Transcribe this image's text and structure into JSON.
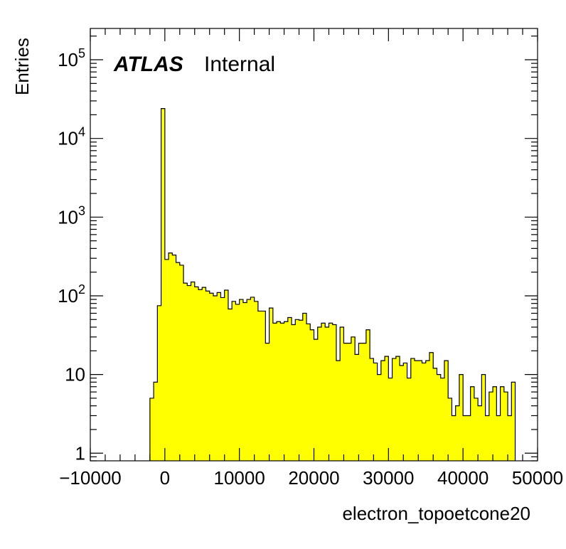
{
  "chart_data": {
    "type": "bar",
    "subtype": "histogram",
    "xlabel": "electron_topoetcone20",
    "ylabel": "Entries",
    "annotation": {
      "label": "ATLAS",
      "status": "Internal"
    },
    "xlim": [
      -10000,
      50000
    ],
    "ylim": [
      0.8,
      250000
    ],
    "yscale": "log",
    "fill_color": "#ffff00",
    "line_color": "#000000",
    "bin_width": 500,
    "x_ticks": [
      "−10000",
      "0",
      "10000",
      "20000",
      "30000",
      "40000",
      "50000"
    ],
    "y_ticks": [
      {
        "value": 1,
        "base": "1",
        "exp": ""
      },
      {
        "value": 10,
        "base": "10",
        "exp": ""
      },
      {
        "value": 100,
        "base": "10",
        "exp": "2"
      },
      {
        "value": 1000,
        "base": "10",
        "exp": "3"
      },
      {
        "value": 10000,
        "base": "10",
        "exp": "4"
      },
      {
        "value": 100000,
        "base": "10",
        "exp": "5"
      }
    ],
    "bins": [
      {
        "x": -2000,
        "y": 5
      },
      {
        "x": -1500,
        "y": 8
      },
      {
        "x": -1000,
        "y": 75
      },
      {
        "x": -500,
        "y": 24000
      },
      {
        "x": 0,
        "y": 290
      },
      {
        "x": 500,
        "y": 350
      },
      {
        "x": 1000,
        "y": 330
      },
      {
        "x": 1500,
        "y": 265
      },
      {
        "x": 2000,
        "y": 245
      },
      {
        "x": 2500,
        "y": 145
      },
      {
        "x": 3000,
        "y": 135
      },
      {
        "x": 3500,
        "y": 150
      },
      {
        "x": 4000,
        "y": 130
      },
      {
        "x": 4500,
        "y": 120
      },
      {
        "x": 5000,
        "y": 128
      },
      {
        "x": 5500,
        "y": 115
      },
      {
        "x": 6000,
        "y": 108
      },
      {
        "x": 6500,
        "y": 100
      },
      {
        "x": 7000,
        "y": 110
      },
      {
        "x": 7500,
        "y": 95
      },
      {
        "x": 8000,
        "y": 118
      },
      {
        "x": 8500,
        "y": 68
      },
      {
        "x": 9000,
        "y": 85
      },
      {
        "x": 9500,
        "y": 78
      },
      {
        "x": 10000,
        "y": 90
      },
      {
        "x": 10500,
        "y": 82
      },
      {
        "x": 11000,
        "y": 90
      },
      {
        "x": 11500,
        "y": 96
      },
      {
        "x": 12000,
        "y": 85
      },
      {
        "x": 12500,
        "y": 64
      },
      {
        "x": 13000,
        "y": 64
      },
      {
        "x": 13500,
        "y": 25
      },
      {
        "x": 14000,
        "y": 70
      },
      {
        "x": 14500,
        "y": 45
      },
      {
        "x": 15000,
        "y": 47
      },
      {
        "x": 15500,
        "y": 45
      },
      {
        "x": 16000,
        "y": 47
      },
      {
        "x": 16500,
        "y": 53
      },
      {
        "x": 17000,
        "y": 43
      },
      {
        "x": 17500,
        "y": 50
      },
      {
        "x": 18000,
        "y": 49
      },
      {
        "x": 18500,
        "y": 60
      },
      {
        "x": 19000,
        "y": 44
      },
      {
        "x": 19500,
        "y": 37
      },
      {
        "x": 20000,
        "y": 28
      },
      {
        "x": 20500,
        "y": 40
      },
      {
        "x": 21000,
        "y": 45
      },
      {
        "x": 21500,
        "y": 40
      },
      {
        "x": 22000,
        "y": 45
      },
      {
        "x": 22500,
        "y": 43
      },
      {
        "x": 23000,
        "y": 15
      },
      {
        "x": 23500,
        "y": 40
      },
      {
        "x": 24000,
        "y": 25
      },
      {
        "x": 24500,
        "y": 25
      },
      {
        "x": 25000,
        "y": 30
      },
      {
        "x": 25500,
        "y": 18
      },
      {
        "x": 26000,
        "y": 25
      },
      {
        "x": 26500,
        "y": 25
      },
      {
        "x": 27000,
        "y": 37
      },
      {
        "x": 27500,
        "y": 16
      },
      {
        "x": 28000,
        "y": 14
      },
      {
        "x": 28500,
        "y": 10
      },
      {
        "x": 29000,
        "y": 15
      },
      {
        "x": 29500,
        "y": 17
      },
      {
        "x": 30000,
        "y": 9
      },
      {
        "x": 30500,
        "y": 16
      },
      {
        "x": 31000,
        "y": 17
      },
      {
        "x": 31500,
        "y": 13
      },
      {
        "x": 32000,
        "y": 14
      },
      {
        "x": 32500,
        "y": 9
      },
      {
        "x": 33000,
        "y": 16
      },
      {
        "x": 33500,
        "y": 15
      },
      {
        "x": 34000,
        "y": 15
      },
      {
        "x": 34500,
        "y": 14
      },
      {
        "x": 35000,
        "y": 15
      },
      {
        "x": 35500,
        "y": 19
      },
      {
        "x": 36000,
        "y": 12
      },
      {
        "x": 36500,
        "y": 10
      },
      {
        "x": 37000,
        "y": 9
      },
      {
        "x": 37500,
        "y": 15
      },
      {
        "x": 38000,
        "y": 5
      },
      {
        "x": 38500,
        "y": 3
      },
      {
        "x": 39000,
        "y": 4
      },
      {
        "x": 39500,
        "y": 10
      },
      {
        "x": 40000,
        "y": 3
      },
      {
        "x": 40500,
        "y": 3
      },
      {
        "x": 41000,
        "y": 7
      },
      {
        "x": 41500,
        "y": 5
      },
      {
        "x": 42000,
        "y": 4
      },
      {
        "x": 42500,
        "y": 10
      },
      {
        "x": 43000,
        "y": 3
      },
      {
        "x": 43500,
        "y": 6
      },
      {
        "x": 44000,
        "y": 7
      },
      {
        "x": 44500,
        "y": 3
      },
      {
        "x": 45000,
        "y": 7
      },
      {
        "x": 45500,
        "y": 6
      },
      {
        "x": 46000,
        "y": 3
      },
      {
        "x": 46500,
        "y": 8
      }
    ]
  }
}
